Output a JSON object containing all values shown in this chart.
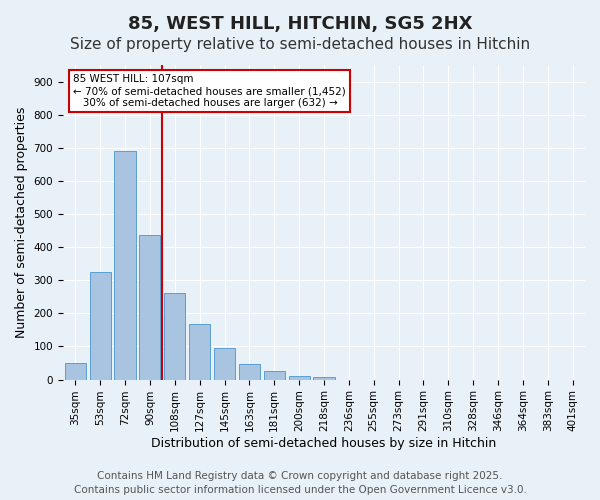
{
  "title": "85, WEST HILL, HITCHIN, SG5 2HX",
  "subtitle": "Size of property relative to semi-detached houses in Hitchin",
  "xlabel": "Distribution of semi-detached houses by size in Hitchin",
  "ylabel": "Number of semi-detached properties",
  "bin_labels": [
    "35sqm",
    "53sqm",
    "72sqm",
    "90sqm",
    "108sqm",
    "127sqm",
    "145sqm",
    "163sqm",
    "181sqm",
    "200sqm",
    "218sqm",
    "236sqm",
    "255sqm",
    "273sqm",
    "291sqm",
    "310sqm",
    "328sqm",
    "346sqm",
    "364sqm",
    "383sqm",
    "401sqm"
  ],
  "bar_values": [
    50,
    325,
    690,
    437,
    260,
    168,
    95,
    47,
    27,
    12,
    8,
    0,
    0,
    0,
    0,
    0,
    0,
    0,
    0,
    0,
    0
  ],
  "bar_color": "#a8c4e0",
  "bar_edgecolor": "#5a9fd4",
  "vline_color": "#cc0000",
  "vline_x": 3.5,
  "annotation_text": "85 WEST HILL: 107sqm\n← 70% of semi-detached houses are smaller (1,452)\n   30% of semi-detached houses are larger (632) →",
  "annotation_box_edgecolor": "#cc0000",
  "ylim": [
    0,
    950
  ],
  "yticks": [
    0,
    100,
    200,
    300,
    400,
    500,
    600,
    700,
    800,
    900
  ],
  "background_color": "#e8f0f8",
  "grid_color": "#ffffff",
  "footer_line1": "Contains HM Land Registry data © Crown copyright and database right 2025.",
  "footer_line2": "Contains public sector information licensed under the Open Government Licence v3.0.",
  "title_fontsize": 13,
  "subtitle_fontsize": 11,
  "axis_label_fontsize": 9,
  "tick_fontsize": 7.5,
  "footer_fontsize": 7.5
}
